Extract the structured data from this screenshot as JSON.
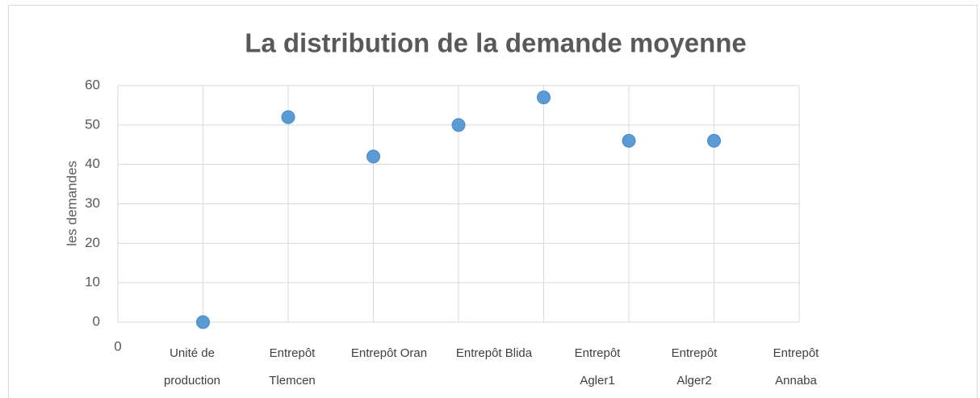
{
  "chart_data": {
    "type": "scatter",
    "title": "La distribution de la demande moyenne",
    "y_label": "les demandes",
    "x_origin_label": "0",
    "categories": [
      "Unité de production",
      "Entrepôt Tlemcen",
      "Entrepôt Oran",
      "Entrepôt Blida",
      "Entrepôt Agler1",
      "Entrepôt Alger2",
      "Entrepôt Annaba"
    ],
    "values": [
      0,
      52,
      42,
      50,
      57,
      46,
      46
    ],
    "color": "#5b9bd5",
    "ylim": [
      0,
      60
    ],
    "yticks": [
      0,
      10,
      20,
      30,
      40,
      50,
      60
    ],
    "grid": true
  }
}
